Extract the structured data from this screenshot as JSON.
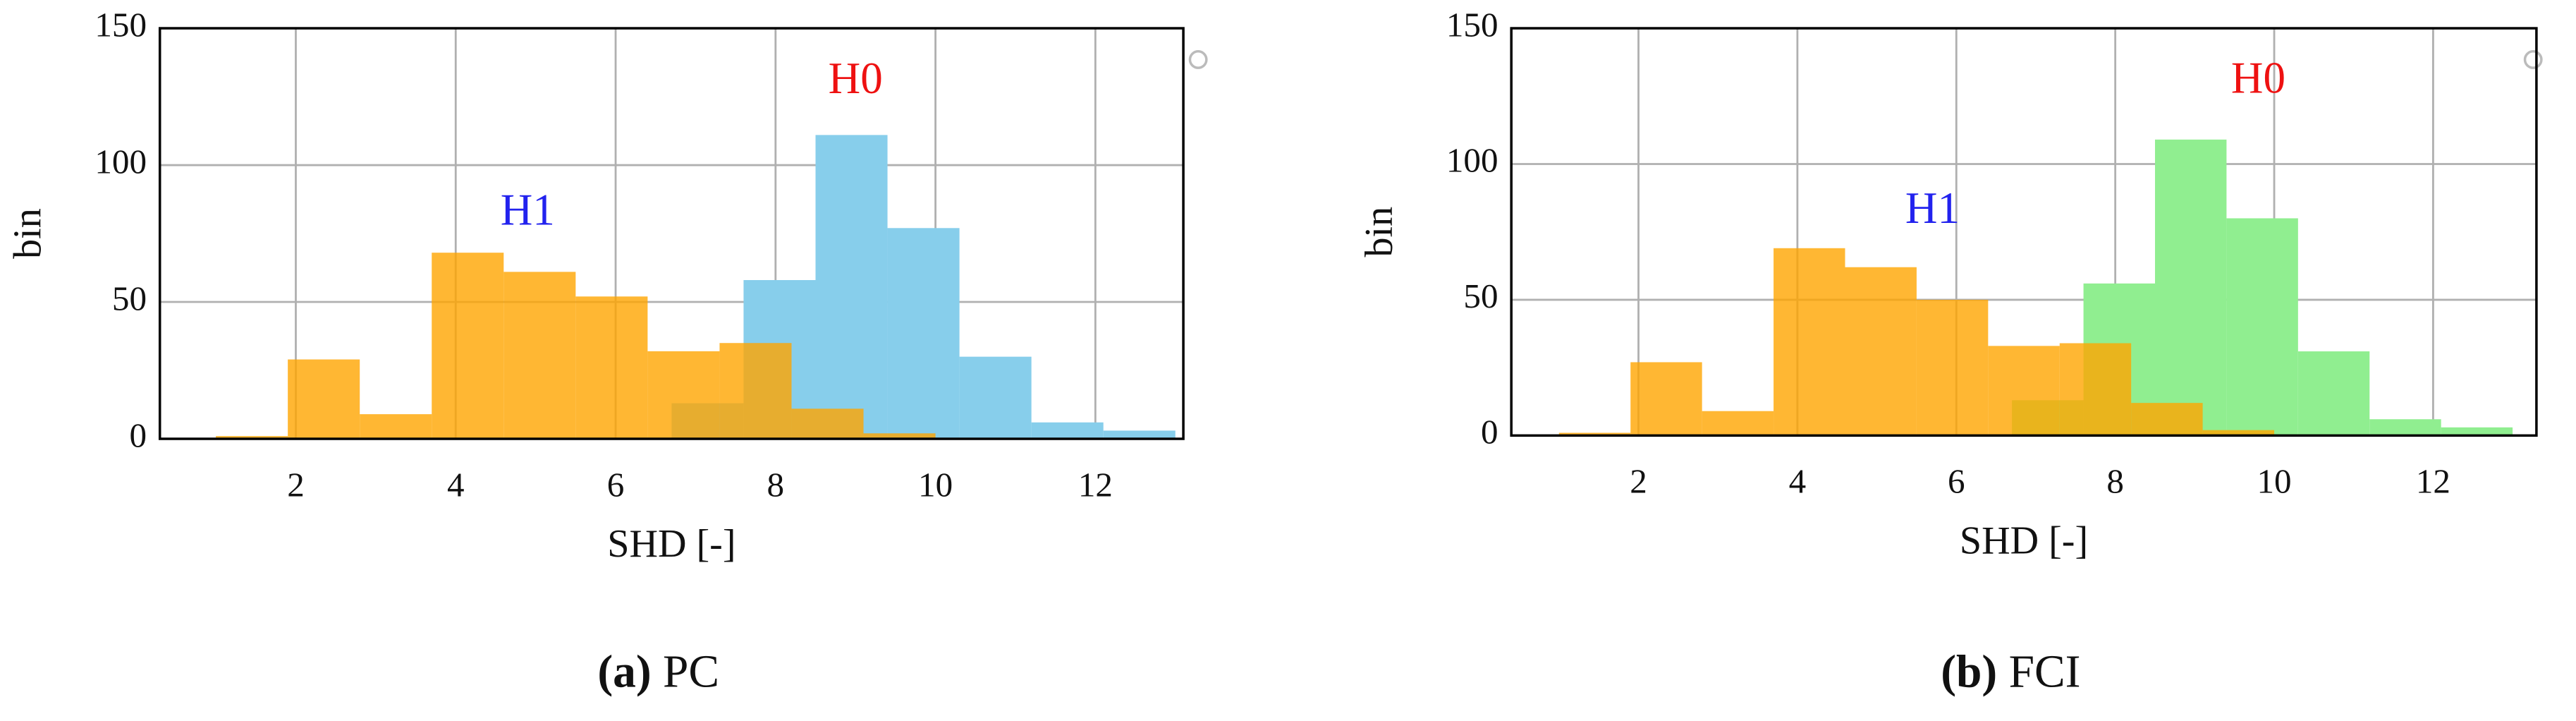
{
  "chart_data": [
    {
      "type": "histogram",
      "xlabel": "SHD [-]",
      "ylabel": "bin",
      "caption": {
        "label": "(a)",
        "text": "PC"
      },
      "xlim": [
        0.3,
        13.1
      ],
      "ylim": [
        0,
        150
      ],
      "xticks": [
        2,
        4,
        6,
        8,
        10,
        12
      ],
      "yticks": [
        0,
        50,
        100,
        150
      ],
      "grid": true,
      "series": [
        {
          "name": "H0",
          "color": "#87ceeb",
          "opacity": 1,
          "bins": [
            6.7,
            7.6,
            8.5,
            9.4,
            10.3,
            11.2,
            12.1,
            13.0
          ],
          "values": [
            13,
            58,
            111,
            77,
            30,
            6,
            3
          ]
        },
        {
          "name": "H1",
          "color": "#ffa500",
          "opacity": 0.8,
          "bins": [
            1.0,
            1.9,
            2.8,
            3.7,
            4.6,
            5.5,
            6.4,
            7.3,
            8.2,
            9.1,
            10.0
          ],
          "values": [
            1,
            29,
            9,
            68,
            61,
            52,
            32,
            35,
            11,
            2
          ]
        }
      ],
      "annotations": [
        {
          "text": "H1",
          "x": 4.9,
          "y": 82,
          "color": "#2222ee"
        },
        {
          "text": "H0",
          "x": 9.0,
          "y": 130,
          "color": "#ee1111"
        }
      ]
    },
    {
      "type": "histogram",
      "xlabel": "SHD [-]",
      "ylabel": "bin",
      "caption": {
        "label": "(b)",
        "text": "FCI"
      },
      "xlim": [
        0.4,
        13.3
      ],
      "ylim": [
        0,
        150
      ],
      "xticks": [
        2,
        4,
        6,
        8,
        10,
        12
      ],
      "yticks": [
        0,
        50,
        100,
        150
      ],
      "grid": true,
      "series": [
        {
          "name": "H0",
          "color": "#90ee90",
          "opacity": 1,
          "bins": [
            6.7,
            7.6,
            8.5,
            9.4,
            10.3,
            11.2,
            12.1,
            13.0
          ],
          "values": [
            13,
            56,
            109,
            80,
            31,
            6,
            3
          ]
        },
        {
          "name": "H1",
          "color": "#ffa500",
          "opacity": 0.8,
          "bins": [
            1.0,
            1.9,
            2.8,
            3.7,
            4.6,
            5.5,
            6.4,
            7.3,
            8.2,
            9.1,
            10.0
          ],
          "values": [
            1,
            27,
            9,
            69,
            62,
            50,
            33,
            34,
            12,
            2
          ]
        }
      ],
      "annotations": [
        {
          "text": "H1",
          "x": 5.7,
          "y": 82,
          "color": "#2222ee"
        },
        {
          "text": "H0",
          "x": 9.8,
          "y": 130,
          "color": "#ee1111"
        }
      ]
    }
  ]
}
